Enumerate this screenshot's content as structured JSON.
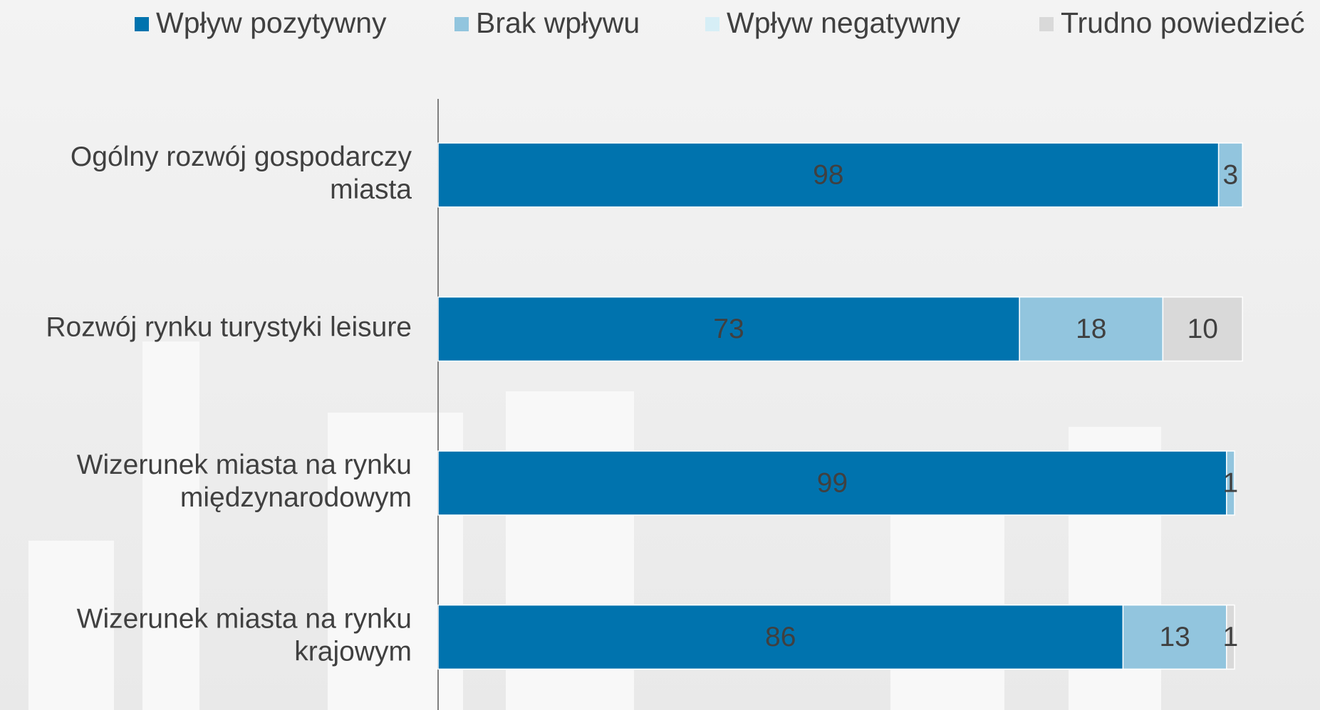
{
  "chart_data": {
    "type": "stacked-bar-horizontal",
    "categories": [
      "Ogólny rozwój gospodarczy miasta",
      "Rozwój rynku turystyki leisure",
      "Wizerunek miasta na rynku międzynarodowym",
      "Wizerunek miasta na rynku krajowym"
    ],
    "series": [
      {
        "name": "Wpływ pozytywny",
        "color": "#0073ae",
        "values": [
          98,
          73,
          99,
          86
        ]
      },
      {
        "name": "Brak wpływu",
        "color": "#92c5de",
        "values": [
          3,
          18,
          1,
          13
        ]
      },
      {
        "name": "Wpływ negatywny",
        "color": "#d6eef6",
        "values": [
          null,
          null,
          null,
          null
        ]
      },
      {
        "name": "Trudno powiedzieć",
        "color": "#d9d9d9",
        "values": [
          null,
          10,
          null,
          1
        ]
      }
    ],
    "legend": "top"
  }
}
